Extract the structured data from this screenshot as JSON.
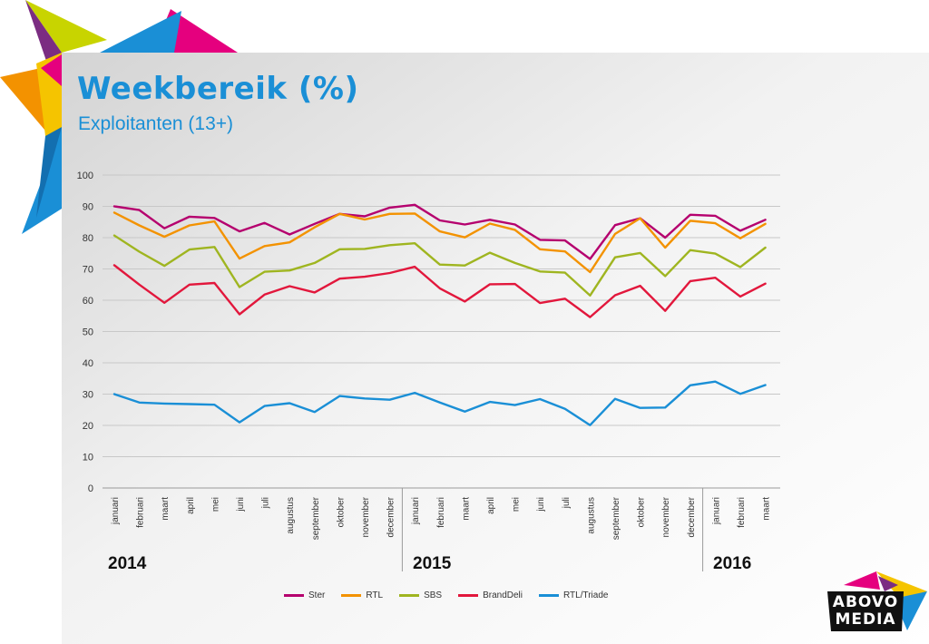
{
  "title": "Weekbereik (%)",
  "subtitle": "Exploitanten (13+)",
  "logo": {
    "line1": "ABOVO",
    "line2": "MEDIA"
  },
  "colors": {
    "title": "#1a8fd6",
    "pink": "#e5007e",
    "yellow": "#f5c400",
    "blue": "#1a8fd6",
    "purple": "#7b2d82",
    "lime": "#c8d400",
    "orange": "#f39200"
  },
  "chart_data": {
    "type": "line",
    "title": "Weekbereik (%)",
    "subtitle": "Exploitanten (13+)",
    "ylim": [
      0,
      100
    ],
    "yticks": [
      0,
      10,
      20,
      30,
      40,
      50,
      60,
      70,
      80,
      90,
      100
    ],
    "grid": true,
    "legend_position": "bottom-center",
    "categories": [
      "januari",
      "februari",
      "maart",
      "april",
      "mei",
      "juni",
      "juli",
      "augustus",
      "september",
      "oktober",
      "november",
      "december",
      "januari",
      "februari",
      "maart",
      "april",
      "mei",
      "juni",
      "juli",
      "augustus",
      "september",
      "oktober",
      "november",
      "december",
      "januari",
      "februari",
      "maart"
    ],
    "years": [
      {
        "label": "2014",
        "start_index": 0
      },
      {
        "label": "2015",
        "start_index": 12
      },
      {
        "label": "2016",
        "start_index": 24
      }
    ],
    "series": [
      {
        "name": "Ster",
        "color": "#b5006e",
        "values": [
          90,
          88.8,
          83,
          86.7,
          86.3,
          82,
          84.7,
          81,
          84.4,
          87.6,
          86.8,
          89.6,
          90.5,
          85.5,
          84.2,
          85.7,
          84.2,
          79.3,
          79.1,
          73.2,
          84,
          86.2,
          80,
          87.3,
          87,
          82.2,
          85.7
        ]
      },
      {
        "name": "RTL",
        "color": "#f39200",
        "values": [
          88,
          83.9,
          80.3,
          83.9,
          85.2,
          73.3,
          77.3,
          78.5,
          83.3,
          87.6,
          85.8,
          87.6,
          87.7,
          82,
          80.1,
          84.5,
          82.5,
          76.3,
          75.6,
          69,
          81.2,
          86.2,
          76.8,
          85.4,
          84.6,
          79.8,
          84.4
        ]
      },
      {
        "name": "SBS",
        "color": "#9fb520",
        "values": [
          80.7,
          75.5,
          71,
          76.2,
          77,
          64.2,
          69.1,
          69.5,
          71.9,
          76.3,
          76.4,
          77.6,
          78.2,
          71.4,
          71.1,
          75.2,
          71.9,
          69.2,
          68.8,
          61.5,
          73.7,
          75.1,
          67.7,
          76,
          74.9,
          70.6,
          76.8
        ]
      },
      {
        "name": "BrandDeli",
        "color": "#e2173c",
        "values": [
          71.2,
          65,
          59.2,
          65,
          65.5,
          55.5,
          61.8,
          64.5,
          62.5,
          66.9,
          67.5,
          68.7,
          70.7,
          63.8,
          59.6,
          65.1,
          65.2,
          59.1,
          60.5,
          54.6,
          61.6,
          64.6,
          56.6,
          66.1,
          67.2,
          61.2,
          65.3
        ]
      },
      {
        "name": "RTL/Triade",
        "color": "#1a8fd6",
        "values": [
          30,
          27.3,
          27,
          26.8,
          26.6,
          21,
          26.2,
          27.1,
          24.3,
          29.4,
          28.6,
          28.2,
          30.4,
          27.3,
          24.4,
          27.5,
          26.5,
          28.4,
          25.3,
          20.1,
          28.5,
          25.6,
          25.7,
          32.8,
          34,
          30.1,
          32.9
        ]
      }
    ]
  }
}
